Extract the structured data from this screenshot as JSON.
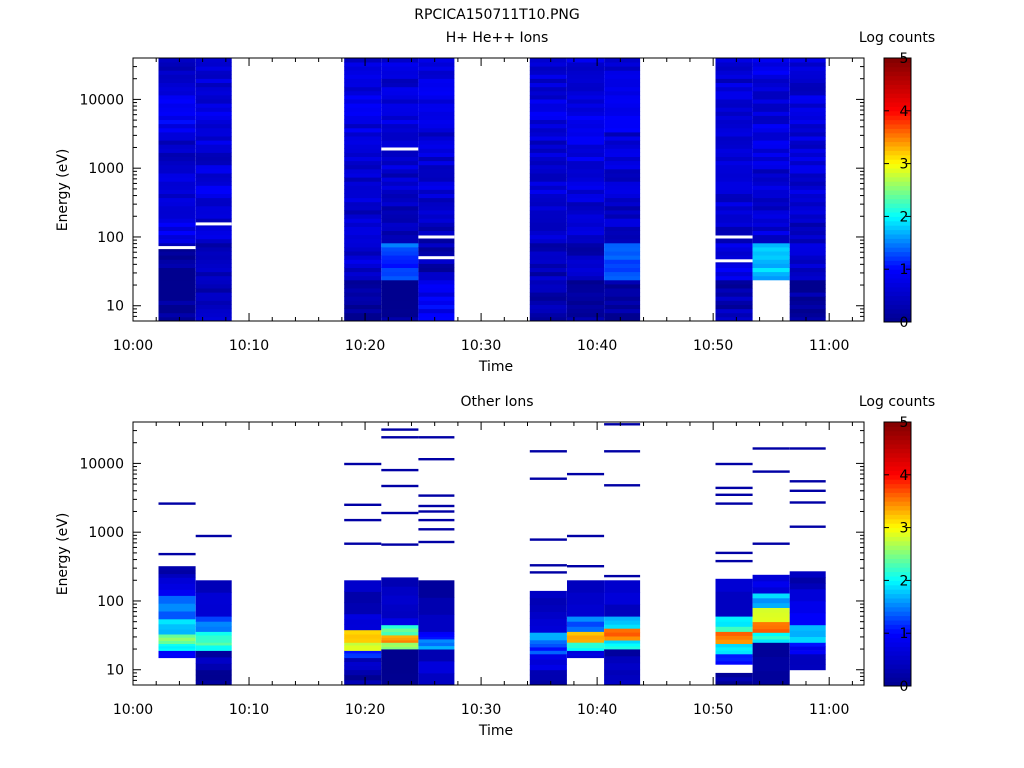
{
  "figure": {
    "title": "RPCICA150711T10.PNG"
  },
  "colors": {
    "background": "#ffffff",
    "axis": "#000000",
    "colormap": "jet",
    "colormap_stops": [
      "#00008f",
      "#0000ff",
      "#00ffff",
      "#ffff00",
      "#ff0000",
      "#800000"
    ]
  },
  "chart_data": [
    {
      "type": "heatmap",
      "title": "H+ He++ Ions",
      "xlabel": "Time",
      "ylabel": "Energy (eV)",
      "x_ticks": [
        "10:00",
        "10:10",
        "10:20",
        "10:30",
        "10:40",
        "10:50",
        "11:00"
      ],
      "xlim_minutes": [
        0,
        63
      ],
      "y_scale": "log",
      "ylim": [
        6,
        40000
      ],
      "y_ticks": [
        10,
        100,
        1000,
        10000
      ],
      "y_tick_labels": [
        "10",
        "100",
        "1000",
        "10000"
      ],
      "colorbar_label": "Log counts",
      "colorbar_range": [
        0,
        5
      ],
      "colorbar_ticks": [
        "0",
        "1",
        "2",
        "3",
        "4",
        "5"
      ],
      "columns": [
        {
          "start_min": 2.2,
          "end_min": 5.4,
          "profile": [
            0.0,
            0.1,
            0.8,
            0.6,
            0.5,
            0.8,
            0.5
          ],
          "gaps_ev": [
            70
          ]
        },
        {
          "start_min": 5.4,
          "end_min": 8.5,
          "profile": [
            0.4,
            0.3,
            0.6,
            0.7,
            0.6,
            0.7,
            0.6
          ],
          "gaps_ev": [
            155
          ]
        },
        {
          "start_min": 18.2,
          "end_min": 21.4,
          "profile": [
            0.1,
            0.6,
            0.5,
            0.6,
            0.6,
            0.7,
            0.6
          ],
          "gaps_ev": []
        },
        {
          "start_min": 21.4,
          "end_min": 24.6,
          "profile": [
            0.0,
            1.3,
            0.4,
            0.5,
            0.6,
            0.7,
            0.6
          ],
          "gaps_ev": [
            1900
          ]
        },
        {
          "start_min": 24.6,
          "end_min": 27.7,
          "profile": [
            0.9,
            0.3,
            0.4,
            0.6,
            0.6,
            0.8,
            0.7
          ],
          "gaps_ev": [
            50,
            100
          ]
        },
        {
          "start_min": 34.2,
          "end_min": 37.4,
          "profile": [
            0.3,
            0.4,
            0.5,
            0.6,
            0.6,
            0.7,
            0.6
          ],
          "gaps_ev": []
        },
        {
          "start_min": 37.4,
          "end_min": 40.6,
          "profile": [
            0.1,
            0.4,
            0.5,
            0.6,
            0.7,
            0.8,
            0.7
          ],
          "gaps_ev": []
        },
        {
          "start_min": 40.6,
          "end_min": 43.7,
          "profile": [
            0.1,
            1.2,
            0.5,
            0.6,
            0.6,
            0.8,
            0.6
          ],
          "gaps_ev": []
        },
        {
          "start_min": 50.2,
          "end_min": 53.4,
          "profile": [
            0.3,
            0.7,
            0.5,
            0.6,
            0.6,
            0.7,
            0.6
          ],
          "gaps_ev": [
            45,
            100
          ]
        },
        {
          "start_min": 53.4,
          "end_min": 56.6,
          "profile": [
            -1,
            1.7,
            0.6,
            0.6,
            0.7,
            0.7,
            0.7
          ],
          "gaps_ev": []
        },
        {
          "start_min": 56.6,
          "end_min": 59.7,
          "profile": [
            0.1,
            0.5,
            0.5,
            0.6,
            0.6,
            0.7,
            0.6
          ],
          "gaps_ev": []
        }
      ]
    },
    {
      "type": "heatmap",
      "title": "Other Ions",
      "xlabel": "Time",
      "ylabel": "Energy (eV)",
      "x_ticks": [
        "10:00",
        "10:10",
        "10:20",
        "10:30",
        "10:40",
        "10:50",
        "11:00"
      ],
      "xlim_minutes": [
        0,
        63
      ],
      "y_scale": "log",
      "ylim": [
        6,
        40000
      ],
      "y_ticks": [
        10,
        100,
        1000,
        10000
      ],
      "y_tick_labels": [
        "10",
        "100",
        "1000",
        "10000"
      ],
      "colorbar_label": "Log counts",
      "colorbar_range": [
        0,
        5
      ],
      "colorbar_ticks": [
        "0",
        "1",
        "2",
        "3",
        "4",
        "5"
      ],
      "columns": [
        {
          "start_min": 2.2,
          "end_min": 5.4,
          "bands": [
            [
              15,
              19,
              1.1
            ],
            [
              19,
              24,
              2.0
            ],
            [
              24,
              33,
              2.6
            ],
            [
              33,
              55,
              1.8
            ],
            [
              55,
              120,
              1.4
            ],
            [
              120,
              220,
              0.8
            ],
            [
              220,
              320,
              0.3
            ]
          ],
          "lines_ev": [
            480,
            2600
          ]
        },
        {
          "start_min": 5.4,
          "end_min": 8.5,
          "bands": [
            [
              6,
              10,
              0.2
            ],
            [
              10,
              19,
              0.3
            ],
            [
              19,
              25,
              2.2
            ],
            [
              25,
              36,
              2.1
            ],
            [
              36,
              60,
              1.4
            ],
            [
              60,
              200,
              0.5
            ]
          ],
          "lines_ev": [
            880
          ]
        },
        {
          "start_min": 18.2,
          "end_min": 21.4,
          "bands": [
            [
              6,
              10,
              0.2
            ],
            [
              10,
              15,
              0.4
            ],
            [
              15,
              19,
              1.1
            ],
            [
              19,
              25,
              2.7
            ],
            [
              25,
              38,
              3.2
            ],
            [
              38,
              65,
              0.6
            ],
            [
              65,
              200,
              0.4
            ]
          ],
          "lines_ev": [
            680,
            1500,
            2500,
            9800
          ]
        },
        {
          "start_min": 21.4,
          "end_min": 24.6,
          "bands": [
            [
              6,
              20,
              0.1
            ],
            [
              20,
              25,
              2.5
            ],
            [
              25,
              32,
              3.5
            ],
            [
              32,
              45,
              2.3
            ],
            [
              45,
              90,
              0.6
            ],
            [
              90,
              220,
              0.5
            ]
          ],
          "lines_ev": [
            660,
            1900,
            4700,
            8000,
            24000,
            31000
          ]
        },
        {
          "start_min": 24.6,
          "end_min": 27.7,
          "bands": [
            [
              6,
              20,
              0.5
            ],
            [
              20,
              28,
              1.6
            ],
            [
              28,
              36,
              0.9
            ],
            [
              36,
              200,
              0.3
            ]
          ],
          "lines_ev": [
            720,
            1100,
            1500,
            2000,
            2400,
            3400,
            11500,
            24000
          ]
        },
        {
          "start_min": 34.2,
          "end_min": 37.4,
          "bands": [
            [
              6,
              10,
              0.2
            ],
            [
              10,
              17,
              0.6
            ],
            [
              17,
              24,
              1.2
            ],
            [
              24,
              35,
              1.5
            ],
            [
              35,
              70,
              0.7
            ],
            [
              70,
              140,
              0.3
            ]
          ],
          "lines_ev": [
            260,
            330,
            780,
            6000,
            15000
          ]
        },
        {
          "start_min": 37.4,
          "end_min": 40.6,
          "bands": [
            [
              10,
              15,
              -1
            ],
            [
              15,
              19,
              0.8
            ],
            [
              19,
              25,
              2.0
            ],
            [
              25,
              36,
              3.2
            ],
            [
              36,
              60,
              1.4
            ],
            [
              60,
              200,
              0.4
            ]
          ],
          "lines_ev": [
            320,
            880,
            7000
          ]
        },
        {
          "start_min": 40.6,
          "end_min": 43.7,
          "bands": [
            [
              6,
              10,
              0.3
            ],
            [
              10,
              20,
              0.3
            ],
            [
              20,
              27,
              2.0
            ],
            [
              27,
              40,
              3.5
            ],
            [
              40,
              60,
              1.8
            ],
            [
              60,
              200,
              0.5
            ]
          ],
          "lines_ev": [
            230,
            4800,
            15000,
            37000
          ]
        },
        {
          "start_min": 50.2,
          "end_min": 53.4,
          "bands": [
            [
              6,
              9,
              0.2
            ],
            [
              12,
              17,
              1.2
            ],
            [
              17,
              24,
              2.0
            ],
            [
              24,
              36,
              3.6
            ],
            [
              36,
              60,
              2.1
            ],
            [
              60,
              210,
              0.6
            ]
          ],
          "lines_ev": [
            380,
            500,
            2600,
            3500,
            4400,
            9800
          ]
        },
        {
          "start_min": 53.4,
          "end_min": 56.6,
          "bands": [
            [
              6,
              25,
              0.2
            ],
            [
              25,
              35,
              2.0
            ],
            [
              35,
              50,
              3.7
            ],
            [
              50,
              80,
              3.0
            ],
            [
              80,
              130,
              1.7
            ],
            [
              130,
              240,
              0.8
            ]
          ],
          "lines_ev": [
            680,
            7600,
            16500
          ]
        },
        {
          "start_min": 56.6,
          "end_min": 59.7,
          "bands": [
            [
              10,
              17,
              0.5
            ],
            [
              17,
              25,
              1.0
            ],
            [
              25,
              45,
              1.8
            ],
            [
              45,
              150,
              0.8
            ],
            [
              150,
              270,
              0.4
            ]
          ],
          "lines_ev": [
            1200,
            2700,
            4000,
            5500,
            16500
          ]
        }
      ]
    }
  ]
}
